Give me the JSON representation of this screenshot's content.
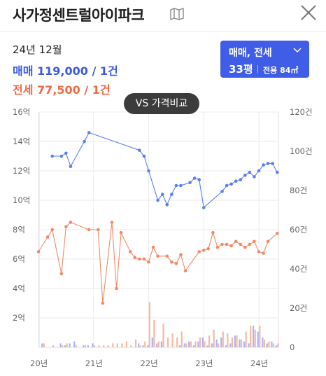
{
  "header": {
    "title": "사가정센트럴아이파크",
    "map_icon": "map-icon",
    "close_icon": "close-icon"
  },
  "summary": {
    "date": "24년 12월",
    "sale": "매매 119,000 / 1건",
    "jeonse": "전세 77,500 / 1건"
  },
  "type_selector": {
    "label": "매매, 전세",
    "area": "33평",
    "area_detail": "전용 84㎡"
  },
  "compare_button": {
    "label": "VS 가격비교"
  },
  "colors": {
    "sale": "#5b7ef0",
    "jeonse": "#f08a67",
    "accent": "#3f5de6"
  },
  "chart_data": {
    "type": "line",
    "x_ticks": [
      "20년",
      "21년",
      "22년",
      "23년",
      "24년"
    ],
    "y_left": {
      "ticks": [
        "2억",
        "4억",
        "6억",
        "8억",
        "10억",
        "12억",
        "14억",
        "16억"
      ],
      "ylim": [
        0,
        16
      ]
    },
    "y_right": {
      "ticks": [
        "0",
        "20건",
        "40건",
        "60건",
        "80건",
        "100건",
        "120건"
      ],
      "ylim": [
        0,
        120
      ]
    },
    "grid": true,
    "series": [
      {
        "name": "매매",
        "values": [
          [
            "2020-04",
            13.0
          ],
          [
            "2020-06",
            13.0
          ],
          [
            "2020-07",
            13.2
          ],
          [
            "2020-08",
            12.3
          ],
          [
            "2020-11",
            14.0
          ],
          [
            "2020-12",
            14.6
          ],
          [
            "2021-11",
            13.4
          ],
          [
            "2021-12",
            13.0
          ],
          [
            "2022-01",
            12.0
          ],
          [
            "2022-03",
            10.0
          ],
          [
            "2022-04",
            10.4
          ],
          [
            "2022-05",
            9.7
          ],
          [
            "2022-06",
            10.4
          ],
          [
            "2022-07",
            11.0
          ],
          [
            "2022-08",
            11.0
          ],
          [
            "2022-10",
            11.2
          ],
          [
            "2022-11",
            11.5
          ],
          [
            "2022-12",
            11.4
          ],
          [
            "2023-01",
            9.5
          ],
          [
            "2023-05",
            10.6
          ],
          [
            "2023-06",
            11.0
          ],
          [
            "2023-07",
            11.1
          ],
          [
            "2023-08",
            11.3
          ],
          [
            "2023-09",
            11.4
          ],
          [
            "2023-10",
            11.7
          ],
          [
            "2023-11",
            11.9
          ],
          [
            "2023-12",
            11.6
          ],
          [
            "2024-01",
            12.0
          ],
          [
            "2024-02",
            12.4
          ],
          [
            "2024-03",
            12.5
          ],
          [
            "2024-04",
            12.5
          ],
          [
            "2024-05",
            11.9
          ]
        ]
      },
      {
        "name": "전세",
        "values": [
          [
            "2020-01",
            6.5
          ],
          [
            "2020-03",
            7.5
          ],
          [
            "2020-04",
            8.0
          ],
          [
            "2020-06",
            5.0
          ],
          [
            "2020-07",
            8.2
          ],
          [
            "2020-08",
            8.5
          ],
          [
            "2020-12",
            8.0
          ],
          [
            "2021-02",
            8.0
          ],
          [
            "2021-03",
            3.0
          ],
          [
            "2021-05",
            8.5
          ],
          [
            "2021-06",
            4.0
          ],
          [
            "2021-07",
            7.8
          ],
          [
            "2021-09",
            6.5
          ],
          [
            "2021-10",
            6.1
          ],
          [
            "2021-11",
            6.0
          ],
          [
            "2021-12",
            6.0
          ],
          [
            "2022-01",
            5.8
          ],
          [
            "2022-02",
            6.8
          ],
          [
            "2022-03",
            6.2
          ],
          [
            "2022-05",
            6.2
          ],
          [
            "2022-06",
            5.8
          ],
          [
            "2022-07",
            5.7
          ],
          [
            "2022-08",
            6.3
          ],
          [
            "2022-09",
            5.2
          ],
          [
            "2022-12",
            6.5
          ],
          [
            "2023-01",
            6.6
          ],
          [
            "2023-02",
            6.7
          ],
          [
            "2023-03",
            7.8
          ],
          [
            "2023-04",
            6.8
          ],
          [
            "2023-05",
            7.0
          ],
          [
            "2023-06",
            7.0
          ],
          [
            "2023-07",
            6.9
          ],
          [
            "2023-08",
            7.2
          ],
          [
            "2023-09",
            7.0
          ],
          [
            "2023-10",
            6.8
          ],
          [
            "2023-11",
            7.0
          ],
          [
            "2023-12",
            7.2
          ],
          [
            "2024-01",
            6.5
          ],
          [
            "2024-02",
            6.4
          ],
          [
            "2024-03",
            7.2
          ],
          [
            "2024-05",
            7.75
          ]
        ]
      }
    ],
    "volume": {
      "sale_counts": [
        0,
        2,
        0,
        0,
        0,
        2,
        1,
        2,
        3,
        0,
        1,
        1,
        2,
        0,
        0,
        0,
        0,
        0,
        0,
        0,
        0,
        0,
        2,
        1,
        1,
        5,
        2,
        3,
        0,
        0,
        0,
        1,
        2,
        3,
        1,
        3,
        5,
        1,
        2,
        4,
        5,
        1,
        2,
        6,
        4,
        3,
        2,
        11,
        8,
        5,
        2,
        3,
        1
      ],
      "jeonse_counts": [
        0,
        2,
        0,
        1,
        0,
        1,
        2,
        0,
        1,
        0,
        1,
        0,
        1,
        1,
        1,
        1,
        2,
        2,
        2,
        3,
        1,
        4,
        1,
        3,
        23,
        14,
        3,
        12,
        5,
        7,
        5,
        8,
        2,
        3,
        3,
        5,
        3,
        6,
        9,
        2,
        8,
        7,
        5,
        6,
        4,
        8,
        11,
        9,
        11,
        4,
        3,
        2,
        2
      ]
    }
  }
}
